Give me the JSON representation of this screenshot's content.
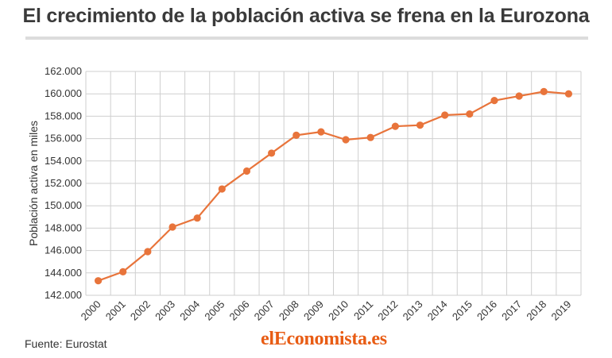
{
  "title": "El crecimiento de la población activa se frena en la Eurozona",
  "source": "Fuente: Eurostat",
  "brand": {
    "prefix": "el",
    "name": "Economista.es"
  },
  "colors": {
    "line": "#e8743b",
    "grid": "#cfcfcf",
    "text": "#333333",
    "brand": "#e85c14"
  },
  "chart_data": {
    "type": "line",
    "title": "El crecimiento de la población activa se frena en la Eurozona",
    "xlabel": "",
    "ylabel": "Población activa en miles",
    "ylim": [
      142000,
      162000
    ],
    "yticks": [
      142000,
      144000,
      146000,
      148000,
      150000,
      152000,
      154000,
      156000,
      158000,
      160000,
      162000
    ],
    "ytick_labels": [
      "142.000",
      "144.000",
      "146.000",
      "148.000",
      "150.000",
      "152.000",
      "154.000",
      "156.000",
      "158.000",
      "160.000",
      "162.000"
    ],
    "categories": [
      "2000",
      "2001",
      "2002",
      "2003",
      "2004",
      "2005",
      "2006",
      "2007",
      "2008",
      "2009",
      "2010",
      "2011",
      "2012",
      "2013",
      "2014",
      "2015",
      "2016",
      "2017",
      "2018",
      "2019"
    ],
    "values": [
      143300,
      144100,
      145900,
      148100,
      148900,
      151500,
      153100,
      154700,
      156300,
      156600,
      155900,
      156100,
      157100,
      157200,
      158100,
      158200,
      159400,
      159800,
      160200,
      160000
    ],
    "grid": true,
    "legend": "none"
  }
}
